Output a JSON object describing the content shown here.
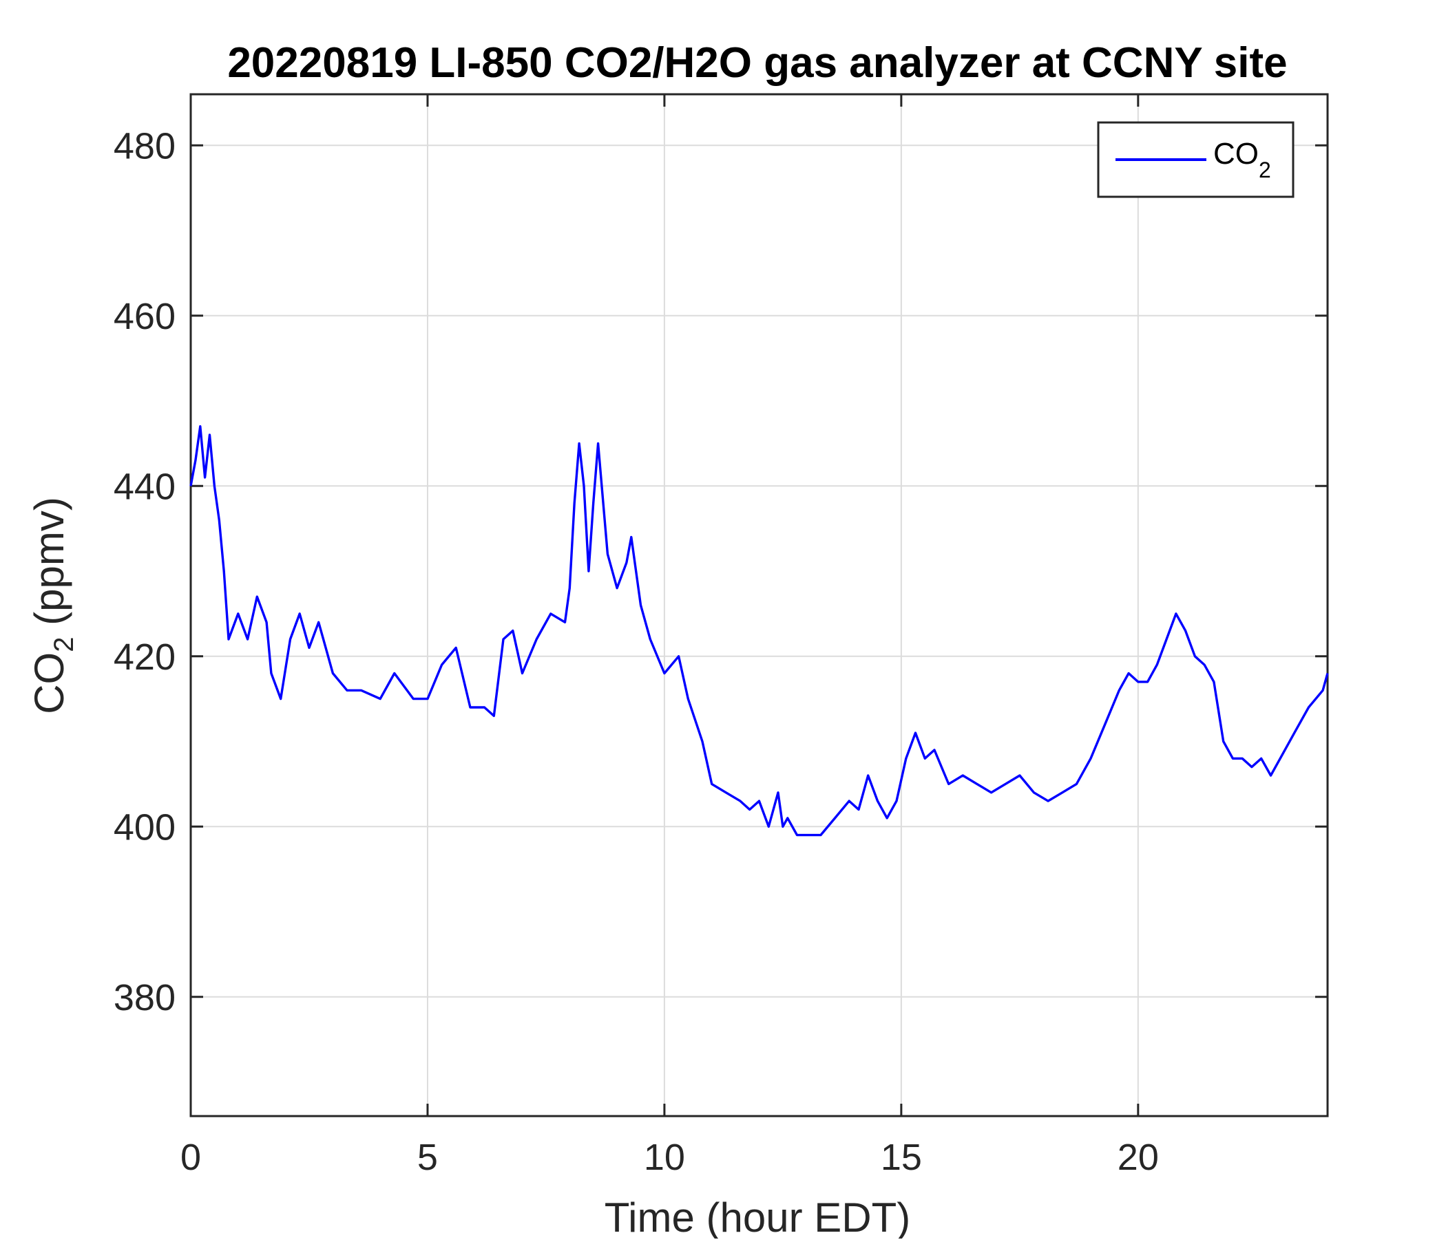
{
  "chart_data": {
    "type": "line",
    "title": "20220819 LI-850 CO2/H2O gas analyzer at CCNY site",
    "xlabel": {
      "main": "Time (hour EDT)"
    },
    "ylabel": {
      "prefix": "CO",
      "subscript": "2",
      "suffix": " (ppmv)"
    },
    "xlim": [
      0,
      24
    ],
    "ylim": [
      366,
      486
    ],
    "xticks": [
      0,
      5,
      10,
      15,
      20
    ],
    "yticks": [
      380,
      400,
      420,
      440,
      460,
      480
    ],
    "grid": true,
    "legend_position": "top-right",
    "series": [
      {
        "name": {
          "prefix": "CO",
          "subscript": "2"
        },
        "color": "#0000ff",
        "x": [
          0,
          0.1,
          0.2,
          0.3,
          0.4,
          0.5,
          0.6,
          0.7,
          0.8,
          1.0,
          1.2,
          1.4,
          1.6,
          1.7,
          1.9,
          2.1,
          2.3,
          2.5,
          2.7,
          2.8,
          3.0,
          3.3,
          3.6,
          4.0,
          4.3,
          4.7,
          5.0,
          5.3,
          5.6,
          5.9,
          6.2,
          6.4,
          6.6,
          6.8,
          7.0,
          7.3,
          7.6,
          7.9,
          8.0,
          8.1,
          8.2,
          8.3,
          8.4,
          8.5,
          8.6,
          8.8,
          9.0,
          9.2,
          9.3,
          9.5,
          9.7,
          10.0,
          10.3,
          10.5,
          10.8,
          11.0,
          11.3,
          11.6,
          11.8,
          12.0,
          12.2,
          12.4,
          12.5,
          12.6,
          12.8,
          13.0,
          13.3,
          13.6,
          13.9,
          14.1,
          14.3,
          14.5,
          14.7,
          14.9,
          15.1,
          15.3,
          15.5,
          15.7,
          16.0,
          16.3,
          16.6,
          16.9,
          17.2,
          17.5,
          17.8,
          18.1,
          18.4,
          18.7,
          19.0,
          19.3,
          19.6,
          19.8,
          20.0,
          20.2,
          20.4,
          20.6,
          20.8,
          21.0,
          21.2,
          21.4,
          21.6,
          21.8,
          22.0,
          22.2,
          22.4,
          22.6,
          22.8,
          23.0,
          23.3,
          23.6,
          23.9,
          24.0
        ],
        "values": [
          440,
          443,
          447,
          441,
          446,
          440,
          436,
          430,
          422,
          425,
          422,
          427,
          424,
          418,
          415,
          422,
          425,
          421,
          424,
          422,
          418,
          416,
          416,
          415,
          418,
          415,
          415,
          419,
          421,
          414,
          414,
          413,
          422,
          423,
          418,
          422,
          425,
          424,
          428,
          438,
          445,
          440,
          430,
          438,
          445,
          432,
          428,
          431,
          434,
          426,
          422,
          418,
          420,
          415,
          410,
          405,
          404,
          403,
          402,
          403,
          400,
          404,
          400,
          401,
          399,
          399,
          399,
          401,
          403,
          402,
          406,
          403,
          401,
          403,
          408,
          411,
          408,
          409,
          405,
          406,
          405,
          404,
          405,
          406,
          404,
          403,
          404,
          405,
          408,
          412,
          416,
          418,
          417,
          417,
          419,
          422,
          425,
          423,
          420,
          419,
          417,
          410,
          408,
          408,
          407,
          408,
          406,
          408,
          411,
          414,
          416,
          418
        ]
      }
    ]
  }
}
